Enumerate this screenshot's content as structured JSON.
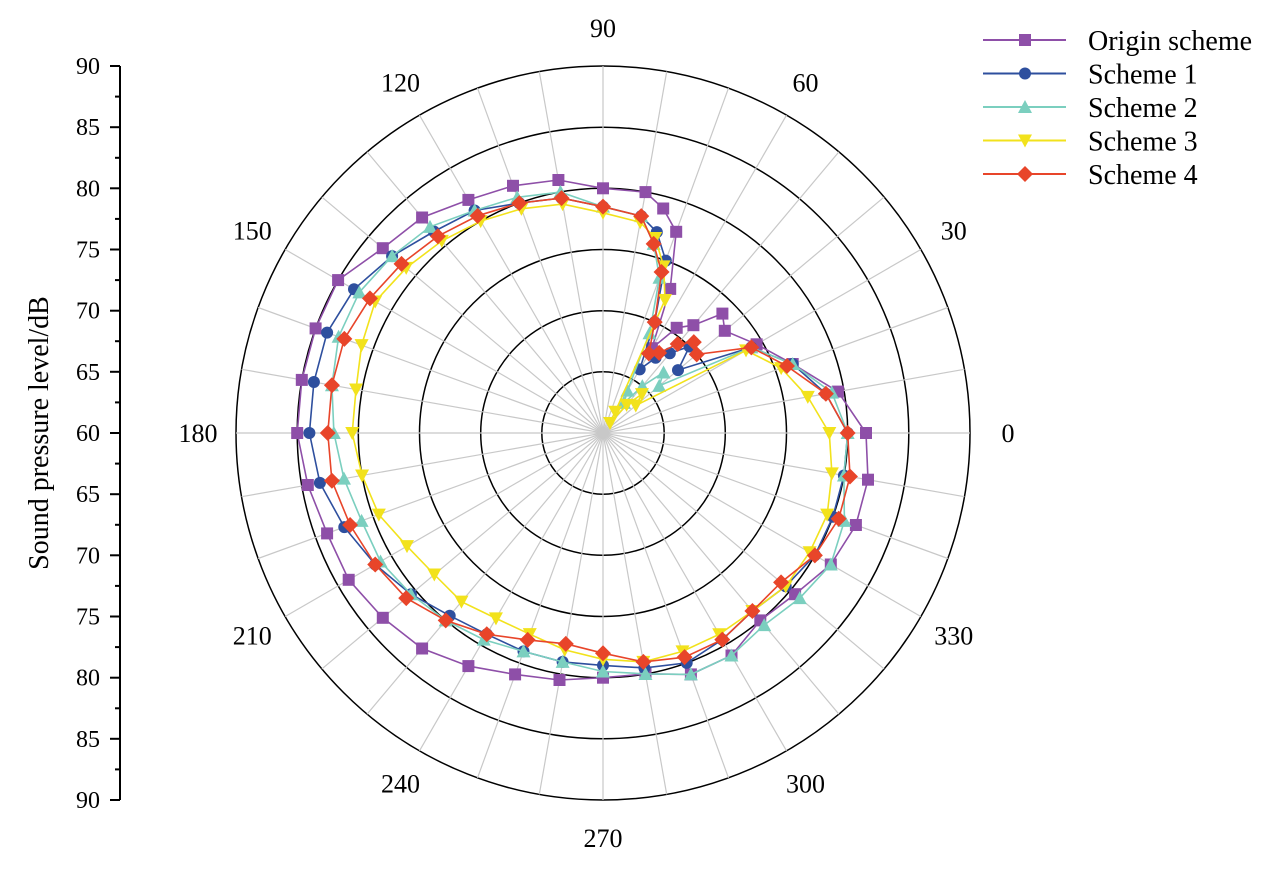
{
  "chart_data": {
    "type": "polar-line",
    "ylabel": "Sound pressure level/dB",
    "radial_range": [
      60,
      90
    ],
    "radial_ticks": [
      90,
      85,
      80,
      75,
      70,
      65,
      60,
      65,
      70,
      75,
      80,
      85,
      90
    ],
    "ring_values": [
      65,
      70,
      75,
      80,
      85,
      90
    ],
    "angle_labels": [
      "0",
      "30",
      "60",
      "90",
      "120",
      "150",
      "180",
      "210",
      "240",
      "270",
      "300",
      "330"
    ],
    "angle_step_deg": 10,
    "legend": [
      "Origin scheme",
      "Scheme 1",
      "Scheme 2",
      "Scheme 3",
      "Scheme 4"
    ],
    "colors": {
      "Origin scheme": "#8e4fa8",
      "Scheme 1": "#2e4f9e",
      "Scheme 2": "#7bcfbf",
      "Scheme 3": "#f2e21c",
      "Scheme 4": "#e8452a"
    },
    "markers": {
      "Origin scheme": "square",
      "Scheme 1": "circle",
      "Scheme 2": "triangle-up",
      "Scheme 3": "triangle-down",
      "Scheme 4": "diamond"
    },
    "angles": [
      0,
      10,
      20,
      30,
      40,
      45,
      50,
      55,
      60,
      65,
      70,
      75,
      80,
      90,
      100,
      110,
      120,
      130,
      140,
      150,
      160,
      170,
      180,
      190,
      200,
      210,
      220,
      230,
      240,
      250,
      260,
      270,
      280,
      290,
      300,
      310,
      320,
      330,
      340,
      350
    ],
    "series": [
      {
        "name": "Origin scheme",
        "values": [
          81.5,
          79.5,
          76.5,
          74.5,
          73.0,
          73.8,
          71.5,
          70.5,
          68.0,
          73.0,
          77.5,
          79.0,
          80.0,
          80.0,
          81.0,
          81.5,
          82.0,
          83.0,
          83.5,
          85.0,
          85.0,
          85.0,
          85.0,
          84.5,
          84.0,
          84.0,
          83.5,
          83.0,
          82.0,
          81.0,
          80.5,
          80.0,
          80.0,
          81.0,
          81.0,
          80.0,
          80.5,
          81.5,
          82.0,
          82.0
        ]
      },
      {
        "name": "Scheme 1",
        "values": [
          80.0,
          78.5,
          76.5,
          74.0,
          68.0,
          70.0,
          68.5,
          67.5,
          66.0,
          70.0,
          75.0,
          77.0,
          78.0,
          78.5,
          79.5,
          80.0,
          81.0,
          81.5,
          82.5,
          83.5,
          84.0,
          84.0,
          84.0,
          83.5,
          82.5,
          81.5,
          80.5,
          79.5,
          79.0,
          79.0,
          79.0,
          79.0,
          79.5,
          80.0,
          79.5,
          79.0,
          79.5,
          80.0,
          80.0,
          80.0
        ]
      },
      {
        "name": "Scheme 2",
        "values": [
          80.0,
          79.0,
          76.5,
          74.0,
          66.0,
          67.0,
          65.0,
          63.0,
          64.0,
          69.0,
          73.5,
          76.0,
          78.0,
          78.5,
          80.0,
          80.5,
          81.0,
          82.0,
          82.5,
          83.0,
          83.0,
          82.5,
          82.0,
          81.5,
          81.0,
          81.0,
          80.5,
          80.0,
          79.5,
          79.0,
          79.0,
          79.5,
          80.0,
          81.0,
          81.0,
          80.5,
          81.0,
          81.5,
          81.0,
          80.0
        ]
      },
      {
        "name": "Scheme 3",
        "values": [
          78.5,
          77.0,
          75.5,
          73.5,
          63.5,
          64.5,
          63.0,
          61.0,
          62.0,
          72.0,
          74.5,
          76.5,
          77.5,
          78.0,
          79.0,
          79.5,
          80.0,
          80.5,
          81.0,
          81.5,
          81.0,
          80.5,
          80.5,
          80.0,
          79.5,
          78.5,
          78.0,
          78.0,
          77.5,
          77.5,
          78.0,
          78.5,
          79.0,
          79.0,
          79.0,
          79.0,
          79.5,
          79.5,
          79.5,
          79.0
        ]
      },
      {
        "name": "Scheme 4",
        "values": [
          80.0,
          78.5,
          76.0,
          74.0,
          70.0,
          70.5,
          69.5,
          68.0,
          67.5,
          70.0,
          74.0,
          76.0,
          78.0,
          78.5,
          79.5,
          80.0,
          80.5,
          81.0,
          81.5,
          82.0,
          82.5,
          82.5,
          82.5,
          82.5,
          82.0,
          81.5,
          81.0,
          80.0,
          79.0,
          78.0,
          77.5,
          78.0,
          79.0,
          79.5,
          79.5,
          79.0,
          79.0,
          80.0,
          80.5,
          80.5
        ]
      }
    ]
  }
}
